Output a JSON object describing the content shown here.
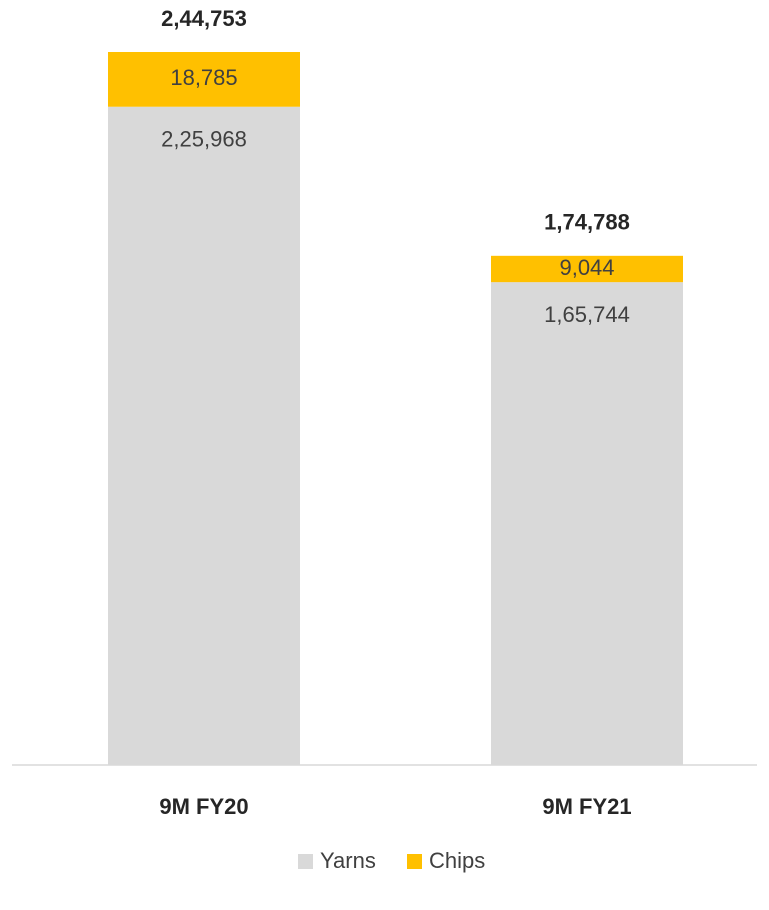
{
  "chart_data": {
    "type": "stacked_bar",
    "categories": [
      "9M FY20",
      "9M FY21"
    ],
    "series": [
      {
        "name": "Yarns",
        "color": "#d9d9d9",
        "values": [
          225968,
          165744
        ],
        "value_labels": [
          "2,25,968",
          "1,65,744"
        ]
      },
      {
        "name": "Chips",
        "color": "#ffc000",
        "values": [
          18785,
          9044
        ],
        "value_labels": [
          "18,785",
          "9,044"
        ]
      }
    ],
    "totals": [
      244753,
      174788
    ],
    "total_labels": [
      "2,44,753",
      "1,74,788"
    ],
    "legend": "bottom"
  }
}
